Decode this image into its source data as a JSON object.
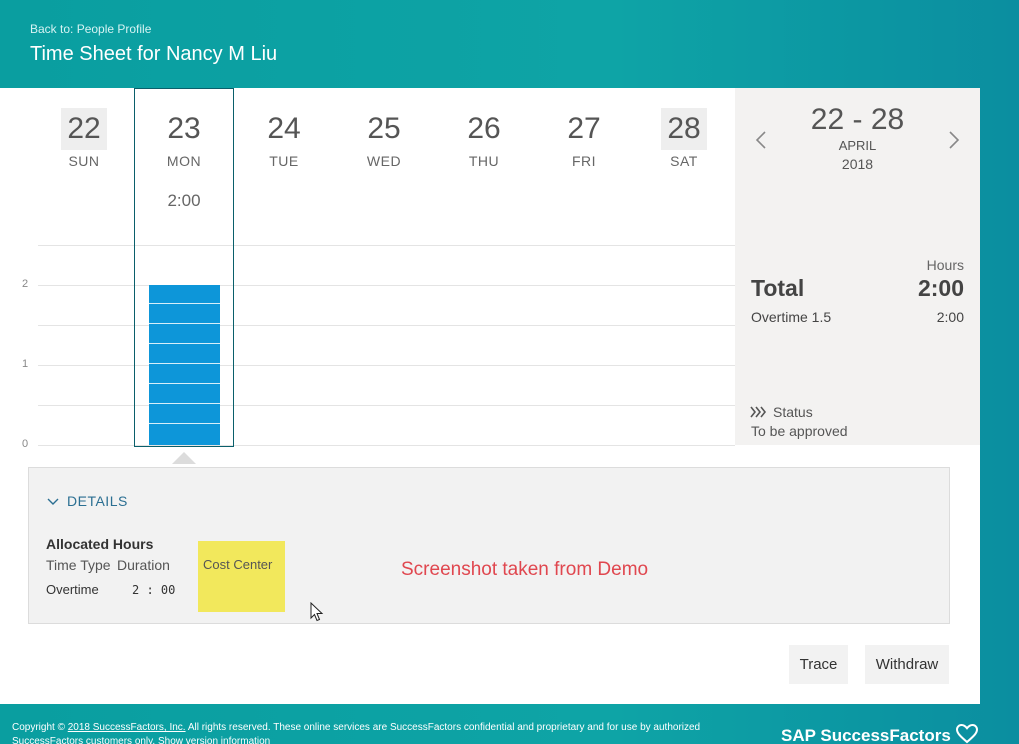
{
  "header": {
    "back_link": "Back to: People Profile",
    "title": "Time Sheet for Nancy M Liu"
  },
  "week": {
    "days": [
      {
        "num": "22",
        "name": "SUN",
        "hours": "",
        "weekend": true
      },
      {
        "num": "23",
        "name": "MON",
        "hours": "2:00",
        "weekend": false
      },
      {
        "num": "24",
        "name": "TUE",
        "hours": "",
        "weekend": false
      },
      {
        "num": "25",
        "name": "WED",
        "hours": "",
        "weekend": false
      },
      {
        "num": "26",
        "name": "THU",
        "hours": "",
        "weekend": false
      },
      {
        "num": "27",
        "name": "FRI",
        "hours": "",
        "weekend": false
      },
      {
        "num": "28",
        "name": "SAT",
        "hours": "",
        "weekend": true
      }
    ],
    "selected_day": "23"
  },
  "chart": {
    "y_ticks": [
      "2",
      "1",
      "0"
    ],
    "bar_value_hours": 2,
    "bar_color": "#0d96d9"
  },
  "summary": {
    "range": "22 - 28",
    "month": "APRIL",
    "year": "2018",
    "prev_icon": "chevron-left-icon",
    "next_icon": "chevron-right-icon",
    "hours_label": "Hours",
    "total_label": "Total",
    "total_value": "2:00",
    "overtime_label": "Overtime 1.5",
    "overtime_value": "2:00",
    "status_icon": "double-chevron-right-icon",
    "status_label": "Status",
    "status_value": "To be approved"
  },
  "details": {
    "toggle_label": "DETAILS",
    "allocated_title": "Allocated Hours",
    "col_time_type": "Time Type",
    "col_duration": "Duration",
    "col_cost_center": "Cost Center",
    "row_time_type": "Overtime",
    "row_duration": "2 : 00",
    "watermark": "Screenshot taken from Demo"
  },
  "actions": {
    "trace": "Trace",
    "withdraw": "Withdraw"
  },
  "footer": {
    "copyright_prefix": "Copyright ©",
    "copyright_link": "2018 SuccessFactors, Inc.",
    "copyright_rest": "All rights reserved. These online services are SuccessFactors confidential and proprietary and for use by authorized",
    "copyright_line2": "SuccessFactors customers only. Show version information",
    "brand": "SAP SuccessFactors"
  },
  "colors": {
    "header_teal": "#0ea4a6",
    "accent_blue": "#0d96d9",
    "link_blue": "#2b6f92",
    "cost_center_highlight": "#f2e85c",
    "watermark_red": "#e0474f"
  }
}
